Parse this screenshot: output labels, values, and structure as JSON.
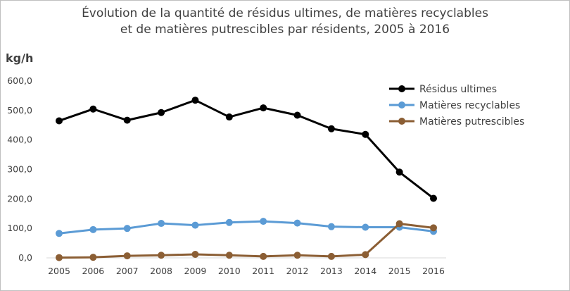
{
  "chart_data": {
    "type": "line",
    "title_line1": "Évolution de la quantité de résidus ultimes, de matières recyclables",
    "title_line2": "et de matières putrescibles par résidents, 2005 à 2016",
    "ylabel": "kg/h",
    "xlabel": "",
    "ylim": [
      0,
      600
    ],
    "yticks": [
      "0,0",
      "100,0",
      "200,0",
      "300,0",
      "400,0",
      "500,0",
      "600,0"
    ],
    "categories": [
      "2005",
      "2006",
      "2007",
      "2008",
      "2009",
      "2010",
      "2011",
      "2012",
      "2013",
      "2014",
      "2015",
      "2016"
    ],
    "grid": false,
    "legend_position": "top-right",
    "series": [
      {
        "name": "Résidus ultimes",
        "color": "#000000",
        "values": [
          465,
          505,
          467,
          493,
          535,
          478,
          509,
          484,
          438,
          419,
          291,
          202
        ]
      },
      {
        "name": "Matières recyclables",
        "color": "#5b9bd5",
        "values": [
          83,
          96,
          100,
          117,
          111,
          120,
          124,
          118,
          106,
          104,
          104,
          90
        ]
      },
      {
        "name": "Matières putrescibles",
        "color": "#8b5e34",
        "values": [
          1,
          2,
          7,
          9,
          12,
          9,
          5,
          9,
          5,
          11,
          116,
          102
        ]
      }
    ]
  }
}
